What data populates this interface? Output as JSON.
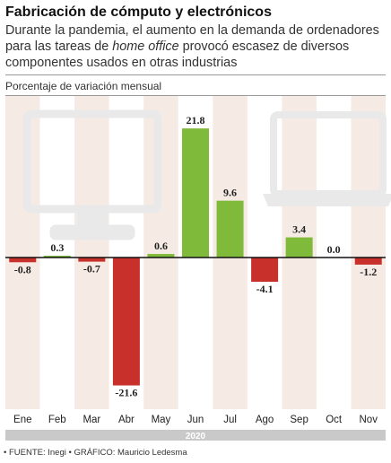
{
  "header": {
    "title": "Fabricación de cómputo y electrónicos",
    "subtitle_pre": "Durante la pandemia, el aumento en la demanda de ordenadores para las tareas de ",
    "subtitle_em": "home office",
    "subtitle_post": " provocó escasez de diversos componentes usados en otras industrias"
  },
  "footer": {
    "source": "• FUENTE: Inegi • GRÁFICO: Mauricio Ledesma"
  },
  "colors": {
    "positive": "#7fba3a",
    "negative": "#c8312b",
    "band": "#f6ebe4",
    "year_bar": "#c9c9c9",
    "illustration": "#e9e9e9"
  },
  "icons": [
    "desktop-monitor-icon",
    "laptop-icon"
  ],
  "chart_data": {
    "type": "bar",
    "ylabel": "Porcentaje de variación mensual",
    "year": "2020",
    "categories": [
      "Ene",
      "Feb",
      "Mar",
      "Abr",
      "May",
      "Jun",
      "Jul",
      "Ago",
      "Sep",
      "Oct",
      "Nov"
    ],
    "values": [
      -0.8,
      0.3,
      -0.7,
      -21.6,
      0.6,
      21.8,
      9.6,
      -4.1,
      3.4,
      0.0,
      -1.2
    ],
    "value_labels": [
      "-0.8",
      "0.3",
      "-0.7",
      "-21.6",
      "0.6",
      "21.8",
      "9.6",
      "-4.1",
      "3.4",
      "0.0",
      "-1.2"
    ],
    "ylim": [
      -24,
      24
    ],
    "grid": false,
    "legend": "none"
  }
}
